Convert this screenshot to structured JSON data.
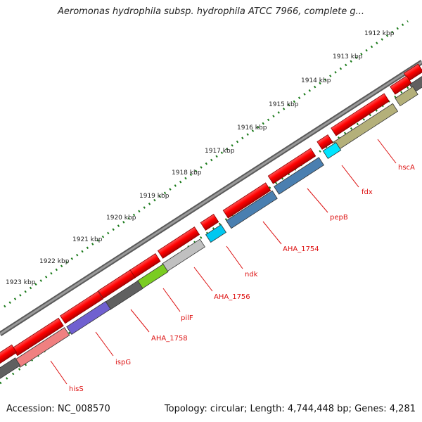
{
  "title": "Aeromonas hydrophila subsp. hydrophila ATCC 7966, complete g...",
  "footer": {
    "accession": "Accession: NC_008570",
    "summary": "Topology: circular; Length: 4,744,448 bp; Genes: 4,281"
  },
  "ticks": [
    "1912 kbp",
    "1913 kbp",
    "1914 kbp",
    "1915 kbp",
    "1916 kbp",
    "1917 kbp",
    "1918 kbp",
    "1919 kbp",
    "1920 kbp",
    "1921 kbp",
    "1922 kbp",
    "1923 kbp"
  ],
  "gene_labels": [
    "hscA",
    "fdx",
    "pepB",
    "AHA_1754",
    "ndk",
    "AHA_1756",
    "pilF",
    "AHA_1758",
    "ispG",
    "hisS"
  ],
  "colors": {
    "cds": "#ff0000",
    "ticks": "#1a7a1a",
    "backbone": "#808080",
    "label": "#dd1111",
    "hscA": "#b4b07a",
    "fdx": "#00e5ff",
    "pepB": "#4a7fb0",
    "AHA_1754": "#4a7fb0",
    "ndk": "#00c8f0",
    "AHA_1756": "#c0c0c0",
    "pilF": "#7acc22",
    "AHA_1758": "#606060",
    "ispG": "#7060d0",
    "hisS": "#f08080"
  }
}
